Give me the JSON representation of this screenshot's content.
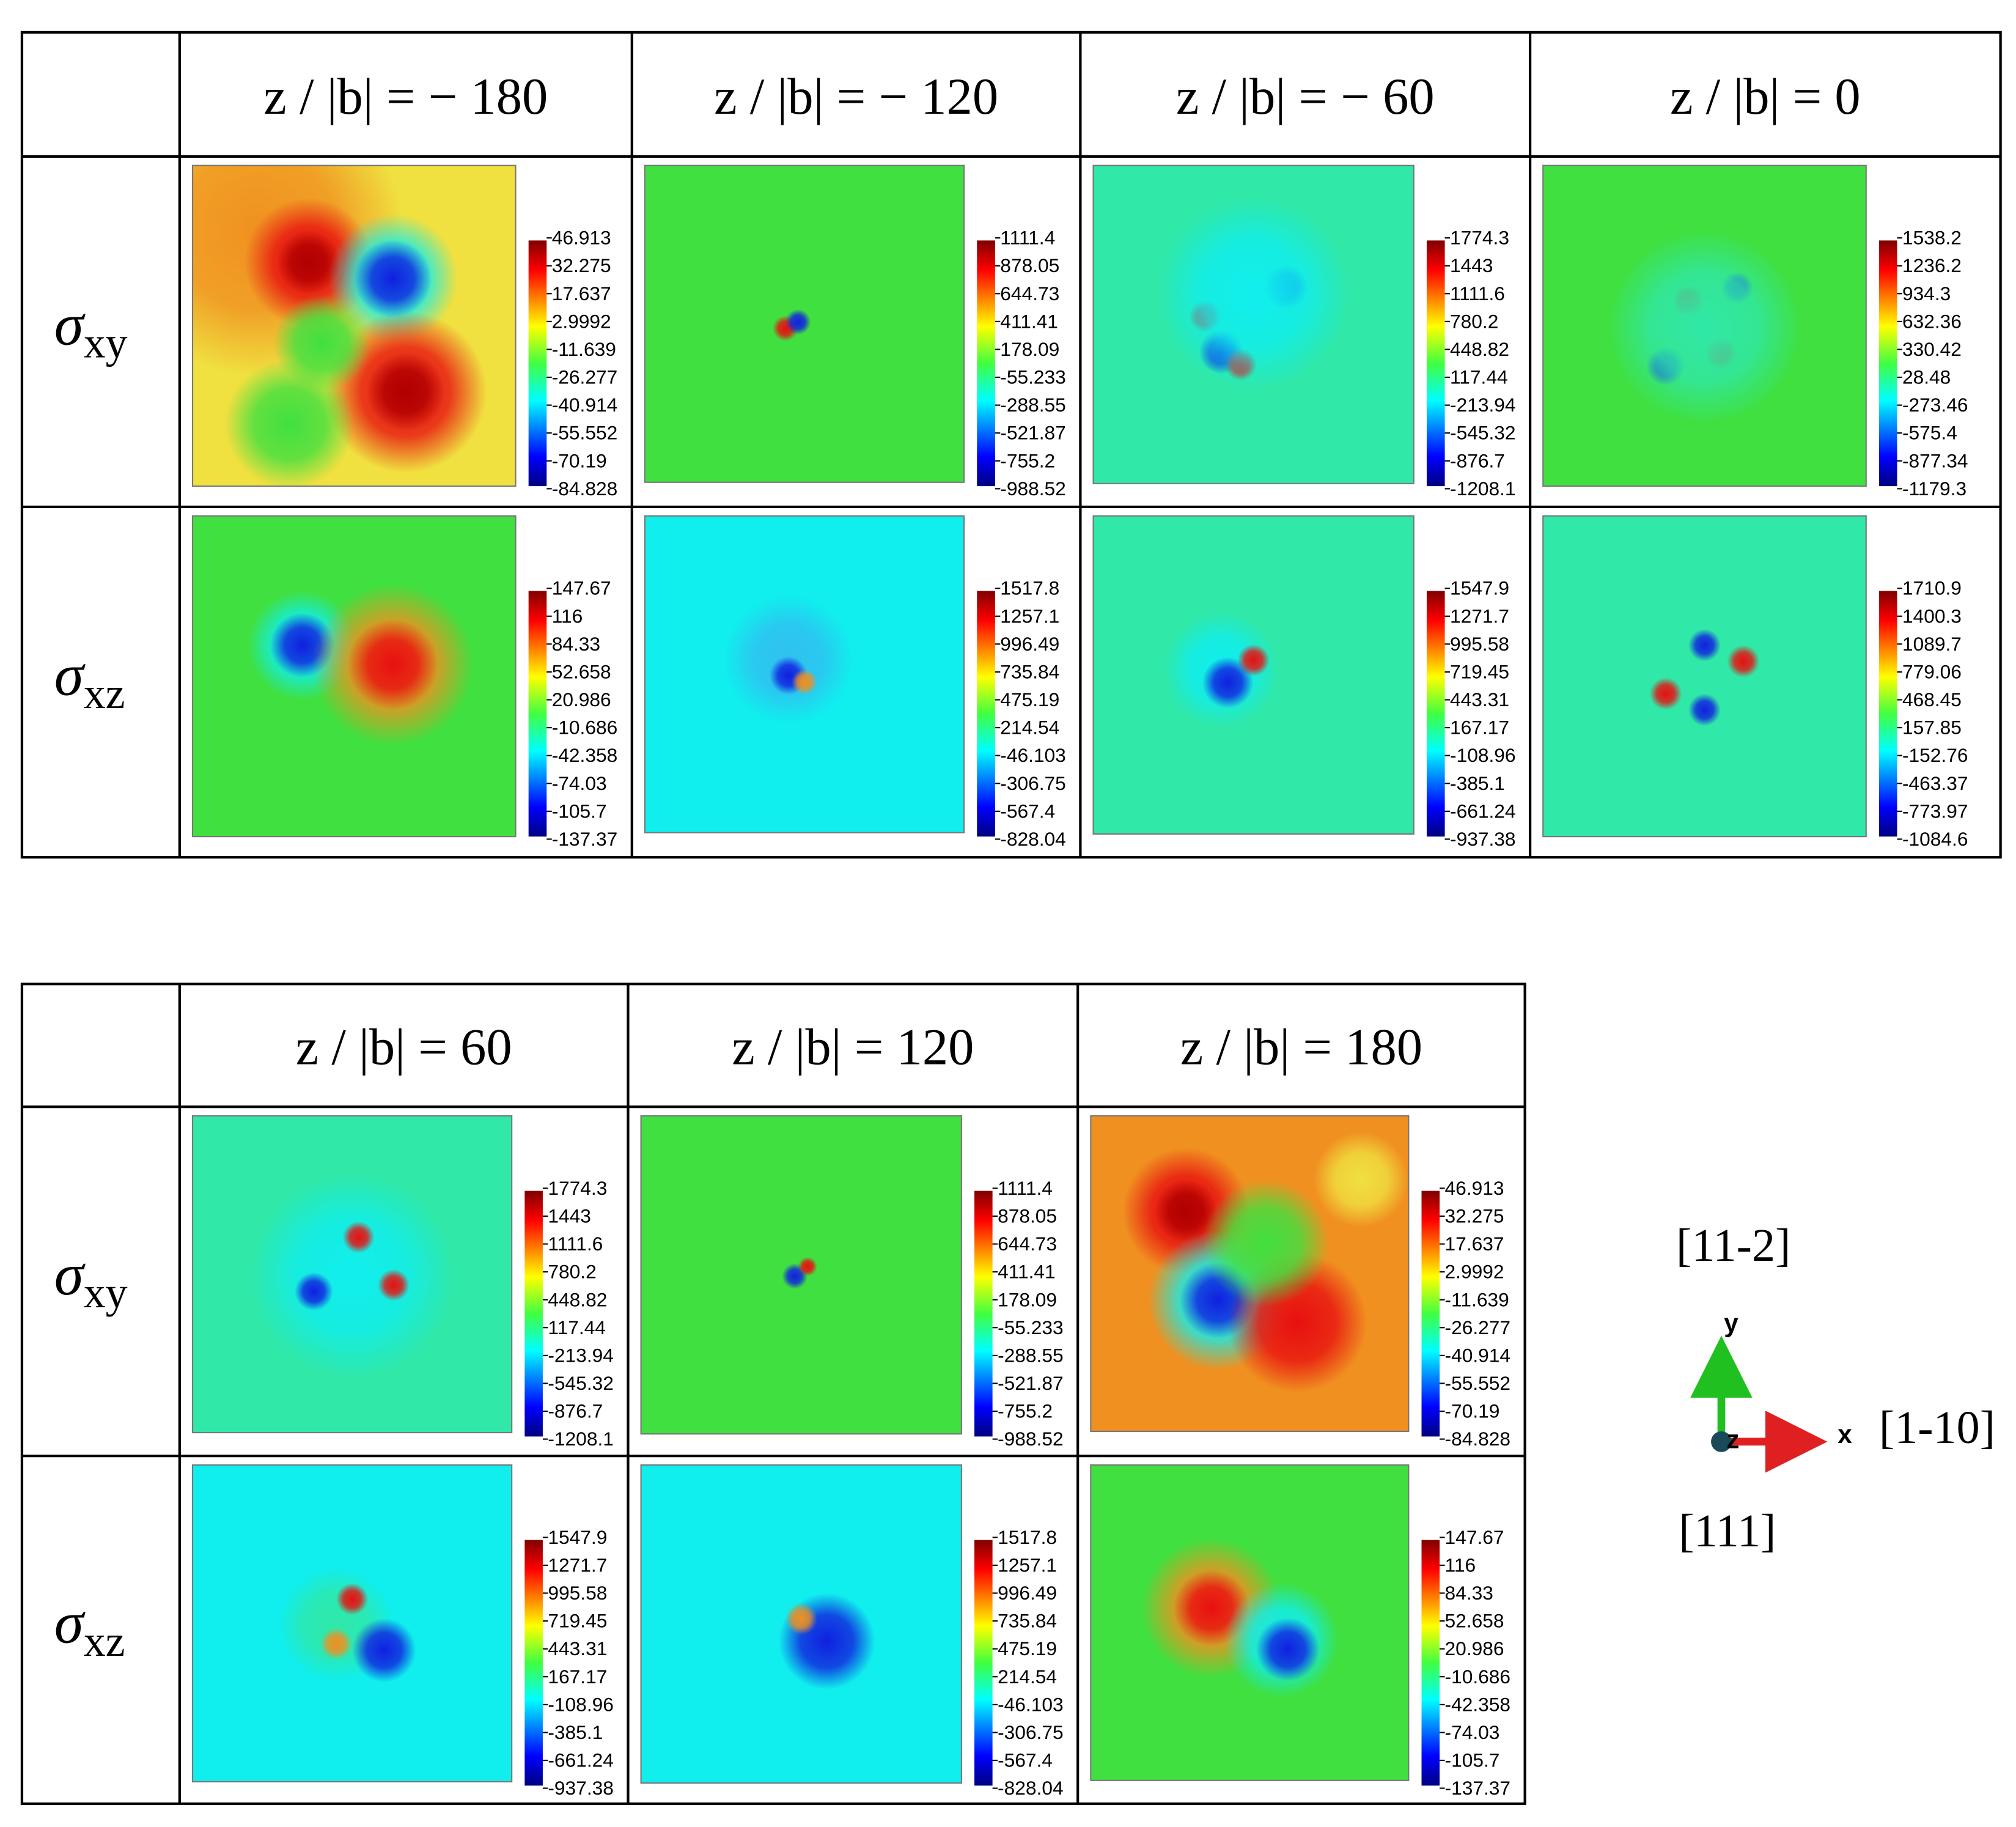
{
  "tables": [
    {
      "columns": [
        "z / |b| = − 180",
        "z / |b| = − 120",
        "z / |b| = − 60",
        "z / |b| = 0"
      ],
      "rows": [
        {
          "label": {
            "symbol": "σ",
            "subscript": "xy"
          },
          "cells": [
            [
              "46.913",
              "32.275",
              "17.637",
              "2.9992",
              "-11.639",
              "-26.277",
              "-40.914",
              "-55.552",
              "-70.19",
              "-84.828"
            ],
            [
              "1111.4",
              "878.05",
              "644.73",
              "411.41",
              "178.09",
              "-55.233",
              "-288.55",
              "-521.87",
              "-755.2",
              "-988.52"
            ],
            [
              "1774.3",
              "1443",
              "1111.6",
              "780.2",
              "448.82",
              "117.44",
              "-213.94",
              "-545.32",
              "-876.7",
              "-1208.1"
            ],
            [
              "1538.2",
              "1236.2",
              "934.3",
              "632.36",
              "330.42",
              "28.48",
              "-273.46",
              "-575.4",
              "-877.34",
              "-1179.3"
            ]
          ]
        },
        {
          "label": {
            "symbol": "σ",
            "subscript": "xz"
          },
          "cells": [
            [
              "147.67",
              "116",
              "84.33",
              "52.658",
              "20.986",
              "-10.686",
              "-42.358",
              "-74.03",
              "-105.7",
              "-137.37"
            ],
            [
              "1517.8",
              "1257.1",
              "996.49",
              "735.84",
              "475.19",
              "214.54",
              "-46.103",
              "-306.75",
              "-567.4",
              "-828.04"
            ],
            [
              "1547.9",
              "1271.7",
              "995.58",
              "719.45",
              "443.31",
              "167.17",
              "-108.96",
              "-385.1",
              "-661.24",
              "-937.38"
            ],
            [
              "1710.9",
              "1400.3",
              "1089.7",
              "779.06",
              "468.45",
              "157.85",
              "-152.76",
              "-463.37",
              "-773.97",
              "-1084.6"
            ]
          ]
        }
      ]
    },
    {
      "columns": [
        "z / |b| = 60",
        "z / |b| = 120",
        "z / |b| = 180"
      ],
      "rows": [
        {
          "label": {
            "symbol": "σ",
            "subscript": "xy"
          },
          "cells": [
            [
              "1774.3",
              "1443",
              "1111.6",
              "780.2",
              "448.82",
              "117.44",
              "-213.94",
              "-545.32",
              "-876.7",
              "-1208.1"
            ],
            [
              "1111.4",
              "878.05",
              "644.73",
              "411.41",
              "178.09",
              "-55.233",
              "-288.55",
              "-521.87",
              "-755.2",
              "-988.52"
            ],
            [
              "46.913",
              "32.275",
              "17.637",
              "2.9992",
              "-11.639",
              "-26.277",
              "-40.914",
              "-55.552",
              "-70.19",
              "-84.828"
            ]
          ]
        },
        {
          "label": {
            "symbol": "σ",
            "subscript": "xz"
          },
          "cells": [
            [
              "1547.9",
              "1271.7",
              "995.58",
              "719.45",
              "443.31",
              "167.17",
              "-108.96",
              "-385.1",
              "-661.24",
              "-937.38"
            ],
            [
              "1517.8",
              "1257.1",
              "996.49",
              "735.84",
              "475.19",
              "214.54",
              "-46.103",
              "-306.75",
              "-567.4",
              "-828.04"
            ],
            [
              "147.67",
              "116",
              "84.33",
              "52.658",
              "20.986",
              "-10.686",
              "-42.358",
              "-74.03",
              "-105.7",
              "-137.37"
            ]
          ]
        }
      ]
    }
  ],
  "axes": {
    "y_direction": "[11-2]",
    "y": "y",
    "z": "z",
    "x": "x",
    "x_direction": "[1-10]",
    "z_direction": "[111]"
  }
}
